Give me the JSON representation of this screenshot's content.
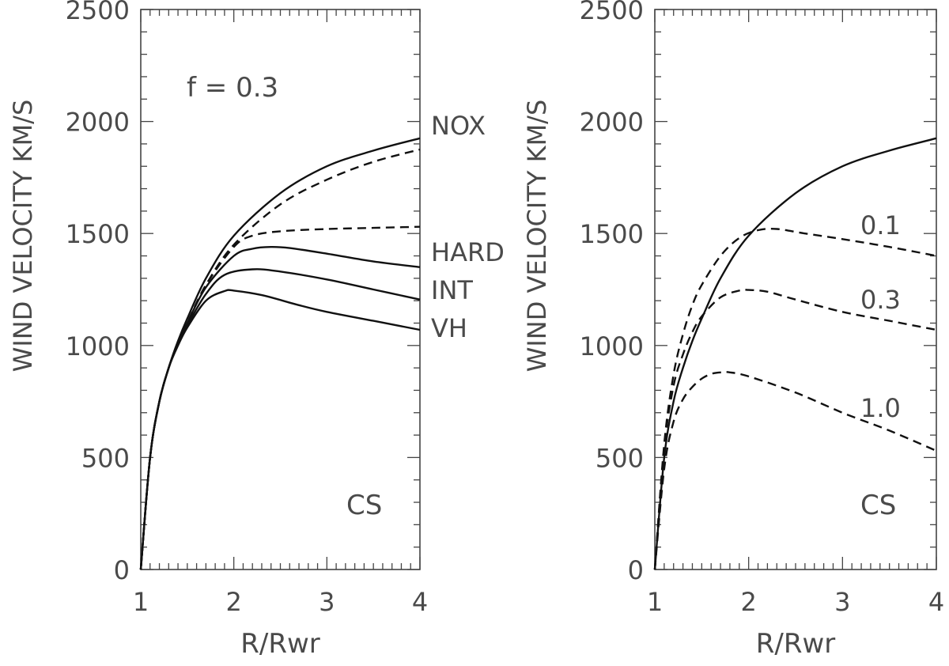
{
  "chart_data": [
    {
      "type": "line",
      "title": "",
      "xlabel": "R/Rwr",
      "ylabel": "WIND VELOCITY KM/S",
      "xlim": [
        1,
        4
      ],
      "ylim": [
        0,
        2500
      ],
      "x_ticks": [
        "1",
        "2",
        "3",
        "4"
      ],
      "y_ticks": [
        "0",
        "500",
        "1000",
        "1500",
        "2000",
        "2500"
      ],
      "annotations": {
        "param": "f = 0.3",
        "corner": "CS"
      },
      "series": [
        {
          "name": "NOX",
          "style": "solid",
          "x": [
            1.0,
            1.1,
            1.2,
            1.3,
            1.4,
            1.5,
            1.7,
            2.0,
            2.5,
            3.0,
            3.5,
            4.0
          ],
          "y": [
            0,
            500,
            750,
            900,
            1020,
            1120,
            1300,
            1490,
            1680,
            1800,
            1870,
            1925
          ]
        },
        {
          "name": "",
          "style": "dashed",
          "x": [
            1.0,
            1.1,
            1.2,
            1.3,
            1.4,
            1.5,
            1.7,
            2.0,
            2.5,
            3.0,
            3.5,
            4.0
          ],
          "y": [
            0,
            500,
            750,
            900,
            1010,
            1100,
            1270,
            1450,
            1630,
            1740,
            1820,
            1875
          ]
        },
        {
          "name": "",
          "style": "dashed",
          "x": [
            1.0,
            1.1,
            1.2,
            1.3,
            1.4,
            1.5,
            1.7,
            2.0,
            2.2,
            2.5,
            3.0,
            3.5,
            4.0
          ],
          "y": [
            0,
            500,
            750,
            900,
            1010,
            1100,
            1270,
            1440,
            1490,
            1510,
            1520,
            1525,
            1530
          ]
        },
        {
          "name": "HARD",
          "style": "solid",
          "x": [
            1.0,
            1.1,
            1.2,
            1.3,
            1.4,
            1.5,
            1.7,
            2.0,
            2.2,
            2.4,
            2.6,
            3.0,
            3.5,
            4.0
          ],
          "y": [
            0,
            500,
            750,
            900,
            1010,
            1100,
            1260,
            1400,
            1432,
            1440,
            1435,
            1410,
            1375,
            1350
          ]
        },
        {
          "name": "INT",
          "style": "solid",
          "x": [
            1.0,
            1.1,
            1.2,
            1.3,
            1.4,
            1.5,
            1.7,
            1.9,
            2.2,
            2.5,
            3.0,
            3.5,
            4.0
          ],
          "y": [
            0,
            500,
            750,
            900,
            1010,
            1090,
            1230,
            1315,
            1340,
            1330,
            1295,
            1250,
            1205
          ]
        },
        {
          "name": "VH",
          "style": "solid",
          "x": [
            1.0,
            1.1,
            1.2,
            1.3,
            1.4,
            1.5,
            1.7,
            1.9,
            2.0,
            2.3,
            2.7,
            3.0,
            3.5,
            4.0
          ],
          "y": [
            0,
            500,
            750,
            900,
            1000,
            1080,
            1200,
            1243,
            1245,
            1225,
            1180,
            1150,
            1110,
            1070
          ]
        }
      ]
    },
    {
      "type": "line",
      "title": "",
      "xlabel": "R/Rwr",
      "ylabel": "WIND VELOCITY KM/S",
      "xlim": [
        1,
        4
      ],
      "ylim": [
        0,
        2500
      ],
      "x_ticks": [
        "1",
        "2",
        "3",
        "4"
      ],
      "y_ticks": [
        "0",
        "500",
        "1000",
        "1500",
        "2000",
        "2500"
      ],
      "annotations": {
        "corner": "CS"
      },
      "series": [
        {
          "name": "",
          "style": "solid",
          "x": [
            1.0,
            1.1,
            1.2,
            1.3,
            1.4,
            1.5,
            1.7,
            2.0,
            2.5,
            3.0,
            3.5,
            4.0
          ],
          "y": [
            0,
            500,
            750,
            900,
            1020,
            1120,
            1300,
            1490,
            1680,
            1800,
            1870,
            1925
          ]
        },
        {
          "name": "0.1",
          "style": "dashed",
          "x": [
            1.0,
            1.1,
            1.2,
            1.3,
            1.4,
            1.5,
            1.7,
            1.9,
            2.1,
            2.3,
            2.6,
            3.0,
            3.5,
            4.0
          ],
          "y": [
            0,
            560,
            870,
            1050,
            1180,
            1270,
            1400,
            1480,
            1515,
            1520,
            1500,
            1475,
            1440,
            1400
          ]
        },
        {
          "name": "0.3",
          "style": "dashed",
          "x": [
            1.0,
            1.1,
            1.2,
            1.3,
            1.4,
            1.5,
            1.7,
            1.9,
            2.0,
            2.2,
            2.5,
            3.0,
            3.5,
            4.0
          ],
          "y": [
            0,
            540,
            820,
            960,
            1060,
            1130,
            1215,
            1245,
            1248,
            1240,
            1205,
            1150,
            1110,
            1070
          ]
        },
        {
          "name": "1.0",
          "style": "dashed",
          "x": [
            1.0,
            1.1,
            1.2,
            1.3,
            1.4,
            1.5,
            1.6,
            1.7,
            1.8,
            2.0,
            2.5,
            3.0,
            3.5,
            4.0
          ],
          "y": [
            0,
            450,
            660,
            760,
            815,
            852,
            873,
            880,
            880,
            862,
            790,
            700,
            620,
            530
          ]
        }
      ]
    }
  ]
}
